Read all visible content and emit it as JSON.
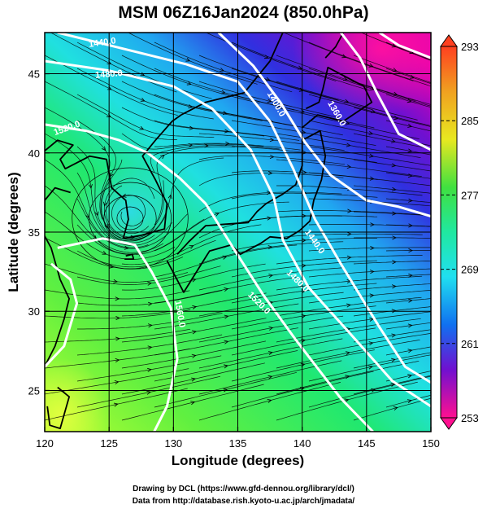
{
  "title": "MSM 06Z16Jan2024 (850.0hPa)",
  "xlabel": "Longitude (degrees)",
  "ylabel": "Latitude  (degrees)",
  "footer_line1": "Drawing by DCL (https://www.gfd-dennou.org/library/dcl/)",
  "footer_line2": "Data from http://database.rish.kyoto-u.ac.jp/arch/jmadata/",
  "map": {
    "lon_range": [
      120,
      150
    ],
    "lat_range": [
      22.4,
      47.6
    ],
    "lon_ticks": [
      "120",
      "125",
      "130",
      "135",
      "140",
      "145",
      "150"
    ],
    "lat_ticks": [
      "25",
      "30",
      "35",
      "40",
      "45"
    ],
    "gridlines": true
  },
  "colorbar": {
    "range": [
      253,
      293
    ],
    "tick_labels": [
      "293",
      "285",
      "277",
      "269",
      "261",
      "253"
    ],
    "colors": [
      "#e8007a",
      "#b000d0",
      "#3020e0",
      "#1090f0",
      "#20e0f0",
      "#20e890",
      "#40e040",
      "#a0e820",
      "#e8e820",
      "#f0a020",
      "#e84020"
    ]
  },
  "contour_labels": [
    {
      "text": "1440.0",
      "lon": 124.5,
      "lat": 46.8,
      "angle": -8
    },
    {
      "text": "1480.0",
      "lon": 125.0,
      "lat": 44.8,
      "angle": -5
    },
    {
      "text": "1520.0",
      "lon": 121.8,
      "lat": 41.4,
      "angle": -20
    },
    {
      "text": "1400.0",
      "lon": 137.8,
      "lat": 43.0,
      "angle": 60
    },
    {
      "text": "1360.0",
      "lon": 142.5,
      "lat": 42.4,
      "angle": 60
    },
    {
      "text": "1440.0",
      "lon": 140.8,
      "lat": 34.3,
      "angle": 55
    },
    {
      "text": "1480.0",
      "lon": 139.5,
      "lat": 31.8,
      "angle": 45
    },
    {
      "text": "1520.0",
      "lon": 136.5,
      "lat": 30.4,
      "angle": 45
    },
    {
      "text": "1560.0",
      "lon": 130.3,
      "lat": 29.8,
      "angle": 80
    }
  ]
}
